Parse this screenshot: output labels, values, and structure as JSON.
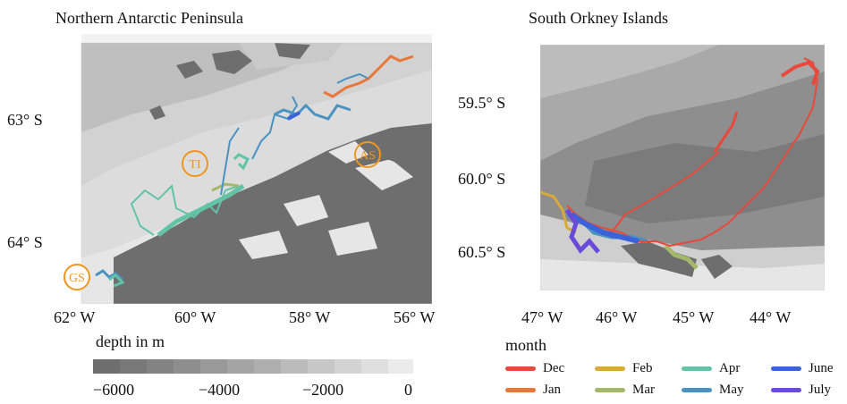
{
  "left_panel": {
    "title": "Northern Antarctic Peninsula",
    "y_ticks": [
      "63° S",
      "64° S"
    ],
    "x_ticks": [
      "62° W",
      "60° W",
      "58° W",
      "56° W"
    ],
    "sites": [
      {
        "code": "TI"
      },
      {
        "code": "AS"
      },
      {
        "code": "GS"
      }
    ],
    "colorbar": {
      "title": "depth in m",
      "ticks": [
        "−6000",
        "−4000",
        "−2000",
        "0"
      ],
      "min": -6000,
      "max": 0
    }
  },
  "right_panel": {
    "title": "South Orkney Islands",
    "y_ticks": [
      "59.5° S",
      "60.0° S",
      "60.5° S"
    ],
    "x_ticks": [
      "47° W",
      "46° W",
      "45° W",
      "44° W"
    ]
  },
  "legend": {
    "title": "month",
    "items": [
      {
        "label": "Dec",
        "color": "#e8493a"
      },
      {
        "label": "Jan",
        "color": "#e8783a"
      },
      {
        "label": "Feb",
        "color": "#d9a93c"
      },
      {
        "label": "Mar",
        "color": "#a3b86b"
      },
      {
        "label": "Apr",
        "color": "#62c4a6"
      },
      {
        "label": "May",
        "color": "#4a92c2"
      },
      {
        "label": "June",
        "color": "#3a62d9"
      },
      {
        "label": "July",
        "color": "#6a4ad9"
      }
    ]
  },
  "colors": {
    "land": "#6e6e6e",
    "site_marker": "#f0961e"
  }
}
